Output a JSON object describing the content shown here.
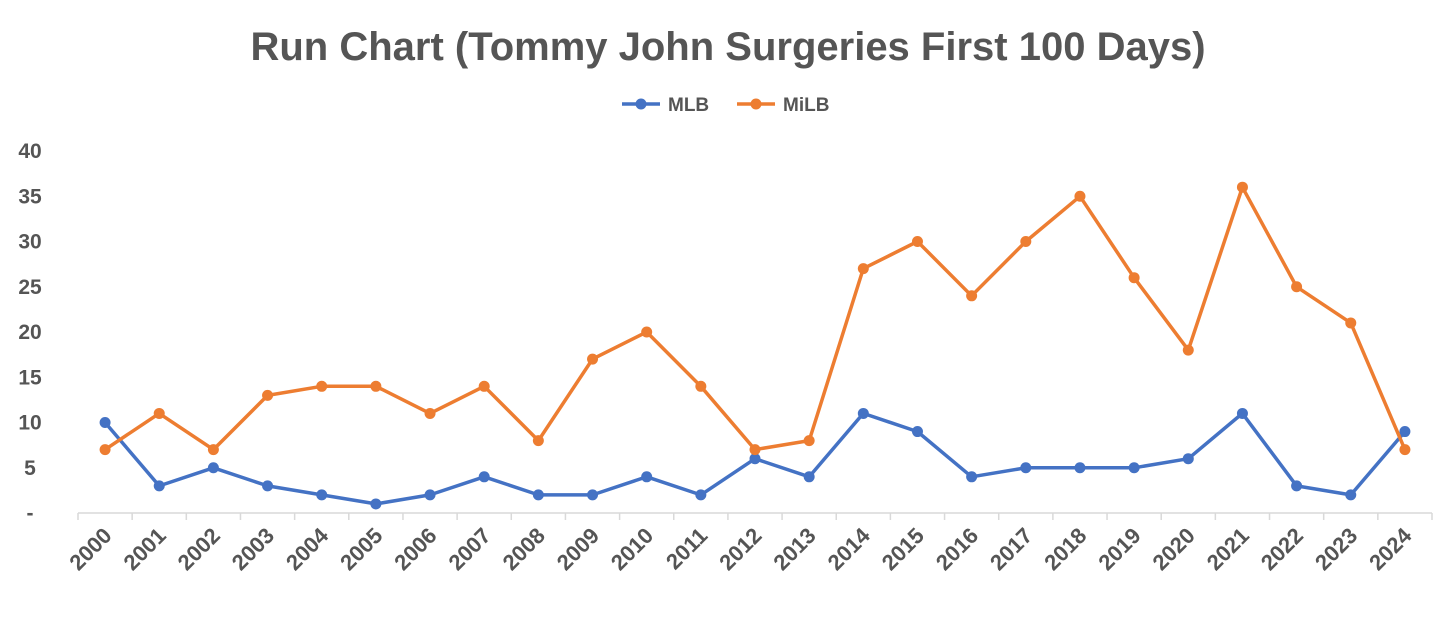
{
  "chart_data": {
    "type": "line",
    "title": "Run Chart (Tommy John Surgeries First 100 Days)",
    "xlabel": "",
    "ylabel": "",
    "categories": [
      "2000",
      "2001",
      "2002",
      "2003",
      "2004",
      "2005",
      "2006",
      "2007",
      "2008",
      "2009",
      "2010",
      "2011",
      "2012",
      "2013",
      "2014",
      "2015",
      "2016",
      "2017",
      "2018",
      "2019",
      "2020",
      "2021",
      "2022",
      "2023",
      "2024"
    ],
    "series": [
      {
        "name": "MLB",
        "color": "#4472C4",
        "values": [
          10,
          3,
          5,
          3,
          2,
          1,
          2,
          4,
          2,
          2,
          4,
          2,
          6,
          4,
          11,
          9,
          4,
          5,
          5,
          5,
          6,
          11,
          3,
          2,
          9
        ]
      },
      {
        "name": "MiLB",
        "color": "#ED7D31",
        "values": [
          7,
          11,
          7,
          13,
          14,
          14,
          11,
          14,
          8,
          17,
          20,
          14,
          7,
          8,
          27,
          30,
          24,
          30,
          35,
          26,
          18,
          36,
          25,
          21,
          7
        ]
      }
    ],
    "ylim": [
      0,
      40
    ],
    "yticks": [
      0,
      5,
      10,
      15,
      20,
      25,
      30,
      35,
      40
    ],
    "ytick_labels": [
      "-",
      "5",
      "10",
      "15",
      "20",
      "25",
      "30",
      "35",
      "40"
    ],
    "grid": false,
    "legend_position": "top-center"
  }
}
